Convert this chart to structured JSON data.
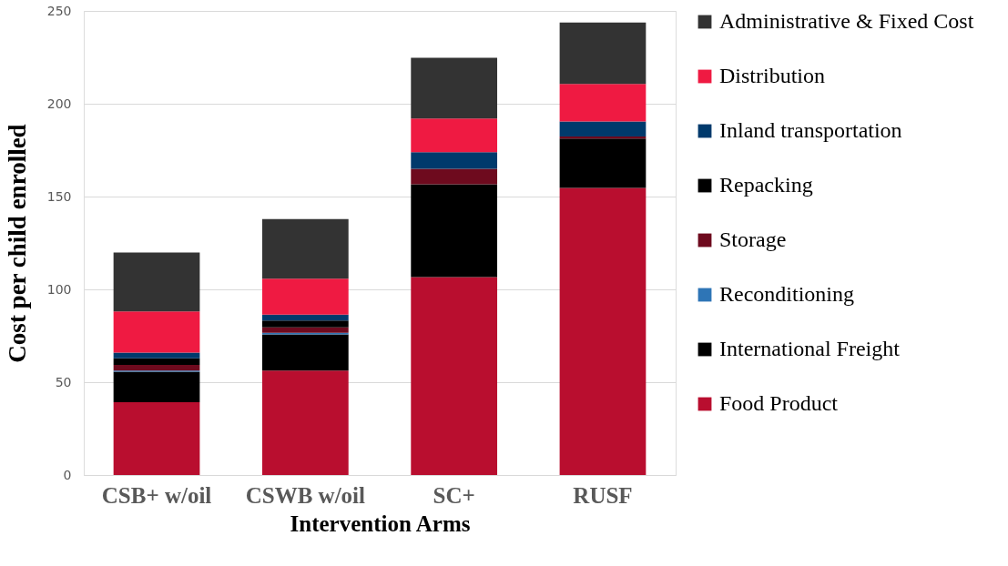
{
  "chart_data": {
    "type": "bar",
    "stacked": true,
    "xlabel": "Intervention Arms",
    "ylabel": "Cost per child enrolled",
    "categories": [
      "CSB+ w/oil",
      "CSWB w/oil",
      "SC+",
      "RUSF"
    ],
    "series": [
      {
        "name": "Food Product",
        "color": "#b90e2f",
        "values": [
          39.2,
          56.3,
          106.6,
          154.7
        ]
      },
      {
        "name": "International Freight",
        "color": "#000000",
        "values": [
          16.4,
          19.4,
          50.0,
          26.6
        ]
      },
      {
        "name": "Reconditioning",
        "color": "#2e75b6",
        "values": [
          0.7,
          0.9,
          0,
          0
        ]
      },
      {
        "name": "Storage",
        "color": "#6e0a1e",
        "values": [
          3.0,
          2.9,
          8.3,
          1.0
        ]
      },
      {
        "name": "Repacking",
        "color": "#000000",
        "values": [
          3.6,
          3.7,
          0,
          0
        ]
      },
      {
        "name": "Inland transportation",
        "color": "#003a6c",
        "values": [
          3.0,
          3.2,
          9.0,
          8.1
        ]
      },
      {
        "name": "Distribution",
        "color": "#ef1a42",
        "values": [
          22.2,
          19.4,
          18.1,
          20.3
        ]
      },
      {
        "name": "Administrative & Fixed Cost",
        "color": "#333333",
        "values": [
          31.8,
          32.1,
          32.8,
          33.0
        ]
      }
    ],
    "ylim": [
      0,
      250
    ],
    "yticks": [
      0,
      50,
      100,
      150,
      200,
      250
    ],
    "grid": "y",
    "legend": "right"
  }
}
